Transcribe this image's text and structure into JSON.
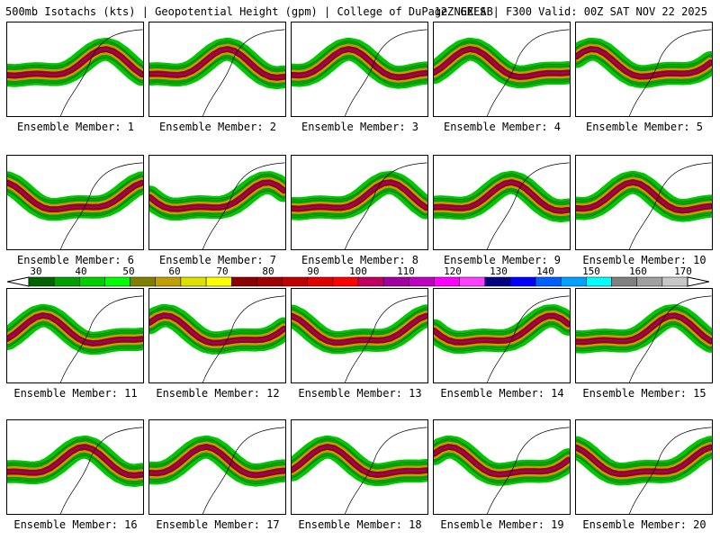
{
  "header": {
    "left": "500mb Isotachs (kts) | Geopotential Height (gpm) | College of DuPage NEXLAB",
    "right": "12Z GEFS | F300 Valid: 00Z SAT NOV 22 2025"
  },
  "members": [
    {
      "label": "Ensemble Member: 1"
    },
    {
      "label": "Ensemble Member: 2"
    },
    {
      "label": "Ensemble Member: 3"
    },
    {
      "label": "Ensemble Member: 4"
    },
    {
      "label": "Ensemble Member: 5"
    },
    {
      "label": "Ensemble Member: 6"
    },
    {
      "label": "Ensemble Member: 7"
    },
    {
      "label": "Ensemble Member: 8"
    },
    {
      "label": "Ensemble Member: 9"
    },
    {
      "label": "Ensemble Member: 10"
    },
    {
      "label": "Ensemble Member: 11"
    },
    {
      "label": "Ensemble Member: 12"
    },
    {
      "label": "Ensemble Member: 13"
    },
    {
      "label": "Ensemble Member: 14"
    },
    {
      "label": "Ensemble Member: 15"
    },
    {
      "label": "Ensemble Member: 16"
    },
    {
      "label": "Ensemble Member: 17"
    },
    {
      "label": "Ensemble Member: 18"
    },
    {
      "label": "Ensemble Member: 19"
    },
    {
      "label": "Ensemble Member: 20"
    }
  ],
  "colorbar": {
    "ticks": [
      "30",
      "40",
      "50",
      "60",
      "70",
      "80",
      "90",
      "100",
      "110",
      "120",
      "130",
      "140",
      "150",
      "160",
      "170"
    ],
    "colors": [
      "#006400",
      "#00a000",
      "#00d000",
      "#00ff00",
      "#808000",
      "#c0a000",
      "#e0e000",
      "#ffff00",
      "#8b0000",
      "#a00000",
      "#c00000",
      "#e00000",
      "#ff0000",
      "#c00060",
      "#a000a0",
      "#c000c0",
      "#ff00ff",
      "#ff40ff",
      "#000080",
      "#0000ff",
      "#0060ff",
      "#00a0ff",
      "#00ffff",
      "#808080",
      "#a0a0a0",
      "#c8c8c8"
    ]
  }
}
